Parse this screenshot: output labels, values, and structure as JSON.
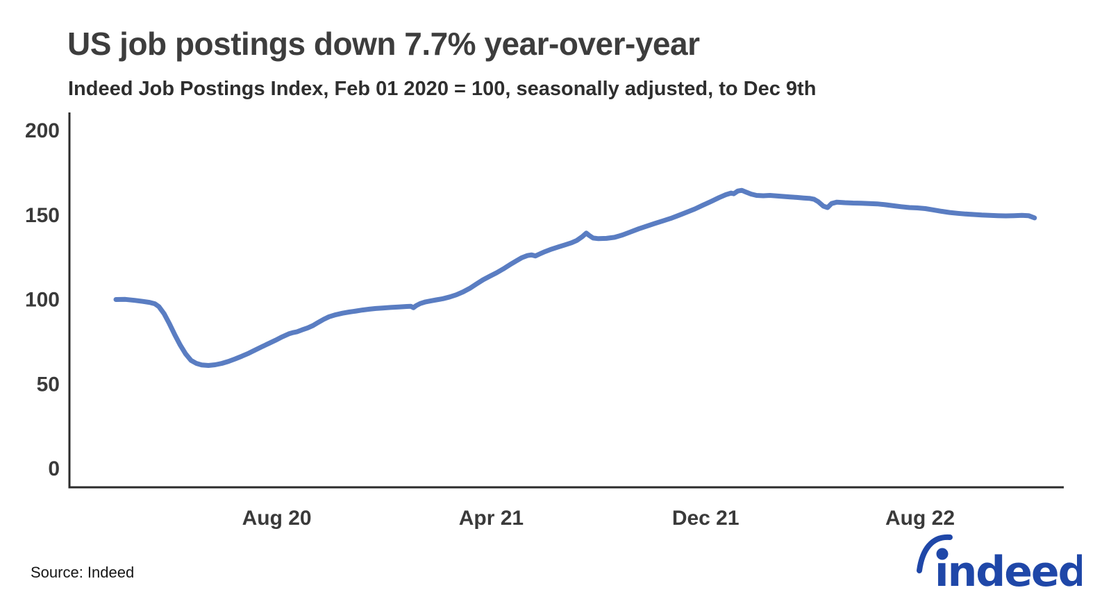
{
  "header": {
    "title": "US job postings down 7.7% year-over-year",
    "subtitle": "Indeed Job Postings Index, Feb 01 2020 = 100, seasonally adjusted, to Dec 9th"
  },
  "footer": {
    "source_label": "Source: Indeed",
    "logo_text": "indeed"
  },
  "colors": {
    "line": "#5a7dc2",
    "axis": "#2b2b2b",
    "tick_text": "#3a3a3a",
    "title_text": "#3d3d3d",
    "logo_blue": "#1f47a8"
  },
  "chart_data": {
    "type": "line",
    "title": "US job postings down 7.7% year-over-year",
    "subtitle": "Indeed Job Postings Index, Feb 01 2020 = 100, seasonally adjusted, to Dec 9th",
    "xlabel": "",
    "ylabel": "",
    "x_unit": "months since 2020-02-01 (series runs Feb 1 2020 to Dec 9 2022)",
    "x_range": [
      0,
      34.27
    ],
    "ylim": [
      0,
      200
    ],
    "y_ticks": [
      0,
      50,
      100,
      150,
      200
    ],
    "x_ticks": [
      {
        "m": 6,
        "label": "Aug 20"
      },
      {
        "m": 14,
        "label": "Apr 21"
      },
      {
        "m": 22,
        "label": "Dec 21"
      },
      {
        "m": 30,
        "label": "Aug 22"
      }
    ],
    "grid": false,
    "legend_position": "none",
    "series": [
      {
        "name": "Indeed Job Postings Index, US, seasonally adjusted",
        "points": [
          [
            0,
            100
          ],
          [
            0.35,
            100.1
          ],
          [
            0.7,
            99.5
          ],
          [
            1,
            98.9
          ],
          [
            1.25,
            98.3
          ],
          [
            1.45,
            97.5
          ],
          [
            1.6,
            95.8
          ],
          [
            1.8,
            91.5
          ],
          [
            2,
            85.5
          ],
          [
            2.2,
            79
          ],
          [
            2.4,
            73
          ],
          [
            2.6,
            67.8
          ],
          [
            2.8,
            64
          ],
          [
            3,
            62.2
          ],
          [
            3.2,
            61.3
          ],
          [
            3.45,
            61
          ],
          [
            3.7,
            61.4
          ],
          [
            3.95,
            62.2
          ],
          [
            4.2,
            63.4
          ],
          [
            4.45,
            64.9
          ],
          [
            4.7,
            66.5
          ],
          [
            4.95,
            68.2
          ],
          [
            5.2,
            70.2
          ],
          [
            5.45,
            72.1
          ],
          [
            5.7,
            74
          ],
          [
            5.95,
            75.9
          ],
          [
            6.2,
            77.9
          ],
          [
            6.45,
            79.7
          ],
          [
            6.6,
            80.4
          ],
          [
            6.75,
            80.9
          ],
          [
            6.95,
            82.1
          ],
          [
            7.15,
            83.2
          ],
          [
            7.35,
            84.6
          ],
          [
            7.55,
            86.5
          ],
          [
            7.75,
            88.3
          ],
          [
            7.95,
            89.8
          ],
          [
            8.2,
            91
          ],
          [
            8.45,
            91.9
          ],
          [
            8.7,
            92.6
          ],
          [
            8.95,
            93.2
          ],
          [
            9.2,
            93.8
          ],
          [
            9.45,
            94.3
          ],
          [
            9.7,
            94.7
          ],
          [
            9.95,
            95
          ],
          [
            10.25,
            95.3
          ],
          [
            10.55,
            95.6
          ],
          [
            10.85,
            95.9
          ],
          [
            11,
            96
          ],
          [
            11.1,
            95.2
          ],
          [
            11.2,
            96.4
          ],
          [
            11.35,
            97.6
          ],
          [
            11.55,
            98.6
          ],
          [
            11.75,
            99.2
          ],
          [
            11.95,
            99.8
          ],
          [
            12.2,
            100.5
          ],
          [
            12.45,
            101.5
          ],
          [
            12.7,
            102.8
          ],
          [
            12.95,
            104.5
          ],
          [
            13.2,
            106.6
          ],
          [
            13.45,
            109.2
          ],
          [
            13.7,
            111.7
          ],
          [
            13.95,
            113.8
          ],
          [
            14.2,
            115.8
          ],
          [
            14.45,
            118.1
          ],
          [
            14.7,
            120.6
          ],
          [
            14.95,
            123
          ],
          [
            15.15,
            124.8
          ],
          [
            15.35,
            126
          ],
          [
            15.5,
            126.4
          ],
          [
            15.65,
            125.8
          ],
          [
            15.8,
            126.9
          ],
          [
            16,
            128.3
          ],
          [
            16.25,
            129.8
          ],
          [
            16.5,
            131.1
          ],
          [
            16.75,
            132.3
          ],
          [
            17,
            133.6
          ],
          [
            17.2,
            135
          ],
          [
            17.4,
            137.2
          ],
          [
            17.55,
            139.3
          ],
          [
            17.65,
            138
          ],
          [
            17.8,
            136.4
          ],
          [
            18,
            136
          ],
          [
            18.3,
            136.2
          ],
          [
            18.6,
            136.8
          ],
          [
            18.9,
            138.2
          ],
          [
            19.2,
            140
          ],
          [
            19.5,
            141.8
          ],
          [
            19.8,
            143.4
          ],
          [
            20.1,
            145
          ],
          [
            20.4,
            146.5
          ],
          [
            20.7,
            148
          ],
          [
            21,
            149.8
          ],
          [
            21.3,
            151.7
          ],
          [
            21.6,
            153.6
          ],
          [
            21.9,
            155.8
          ],
          [
            22.2,
            158
          ],
          [
            22.5,
            160.3
          ],
          [
            22.75,
            162
          ],
          [
            22.95,
            163
          ],
          [
            23.05,
            162.6
          ],
          [
            23.2,
            164.2
          ],
          [
            23.35,
            164.6
          ],
          [
            23.5,
            163.6
          ],
          [
            23.7,
            162.4
          ],
          [
            23.9,
            161.6
          ],
          [
            24.15,
            161.4
          ],
          [
            24.4,
            161.6
          ],
          [
            24.65,
            161.3
          ],
          [
            24.9,
            161
          ],
          [
            25.15,
            160.7
          ],
          [
            25.4,
            160.4
          ],
          [
            25.65,
            160.1
          ],
          [
            25.9,
            159.8
          ],
          [
            26.05,
            159.3
          ],
          [
            26.2,
            157.9
          ],
          [
            26.4,
            155.2
          ],
          [
            26.55,
            154.4
          ],
          [
            26.7,
            156.8
          ],
          [
            26.9,
            157.6
          ],
          [
            27.2,
            157.3
          ],
          [
            27.5,
            157.1
          ],
          [
            27.8,
            157
          ],
          [
            28.1,
            156.8
          ],
          [
            28.4,
            156.6
          ],
          [
            28.7,
            156.1
          ],
          [
            29,
            155.5
          ],
          [
            29.3,
            154.9
          ],
          [
            29.6,
            154.4
          ],
          [
            29.9,
            154.2
          ],
          [
            30.2,
            153.8
          ],
          [
            30.5,
            153
          ],
          [
            30.8,
            152.2
          ],
          [
            31.1,
            151.5
          ],
          [
            31.4,
            151
          ],
          [
            31.7,
            150.6
          ],
          [
            32,
            150.3
          ],
          [
            32.3,
            150
          ],
          [
            32.6,
            149.8
          ],
          [
            32.9,
            149.6
          ],
          [
            33.2,
            149.5
          ],
          [
            33.5,
            149.6
          ],
          [
            33.8,
            149.8
          ],
          [
            34.05,
            149.6
          ],
          [
            34.27,
            148.3
          ]
        ]
      }
    ]
  }
}
